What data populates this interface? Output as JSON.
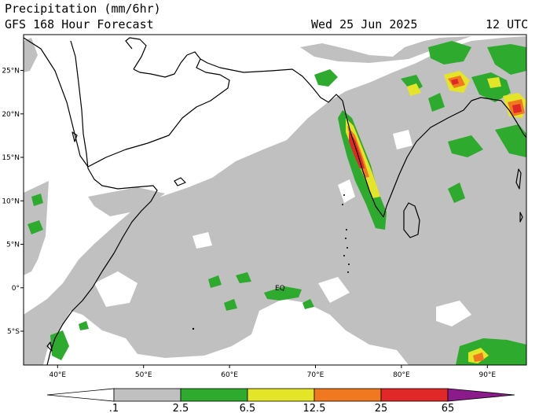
{
  "header": {
    "title": "Precipitation (mm/6hr)",
    "subtitle": "GFS 168 Hour Forecast",
    "date": "Wed 25 Jun 2025",
    "time": "12 UTC"
  },
  "map": {
    "lon_range": [
      36.5,
      95
    ],
    "lat_range": [
      -9,
      29
    ],
    "lat_ticks": [
      "25°N",
      "20°N",
      "15°N",
      "10°N",
      "5°N",
      "0°",
      "5°S"
    ],
    "lon_ticks": [
      "40°E",
      "50°E",
      "60°E",
      "70°E",
      "80°E",
      "90°E"
    ],
    "equator_label": "EQ",
    "coastline_color": "#000000"
  },
  "colorbar": {
    "levels": [
      ".1",
      "2.5",
      "6.5",
      "12.5",
      "25",
      "65"
    ],
    "colors": [
      "#ffffff",
      "#c0c0c0",
      "#2eaa2e",
      "#e4e428",
      "#f07820",
      "#e02828",
      "#8b1a8b"
    ]
  }
}
